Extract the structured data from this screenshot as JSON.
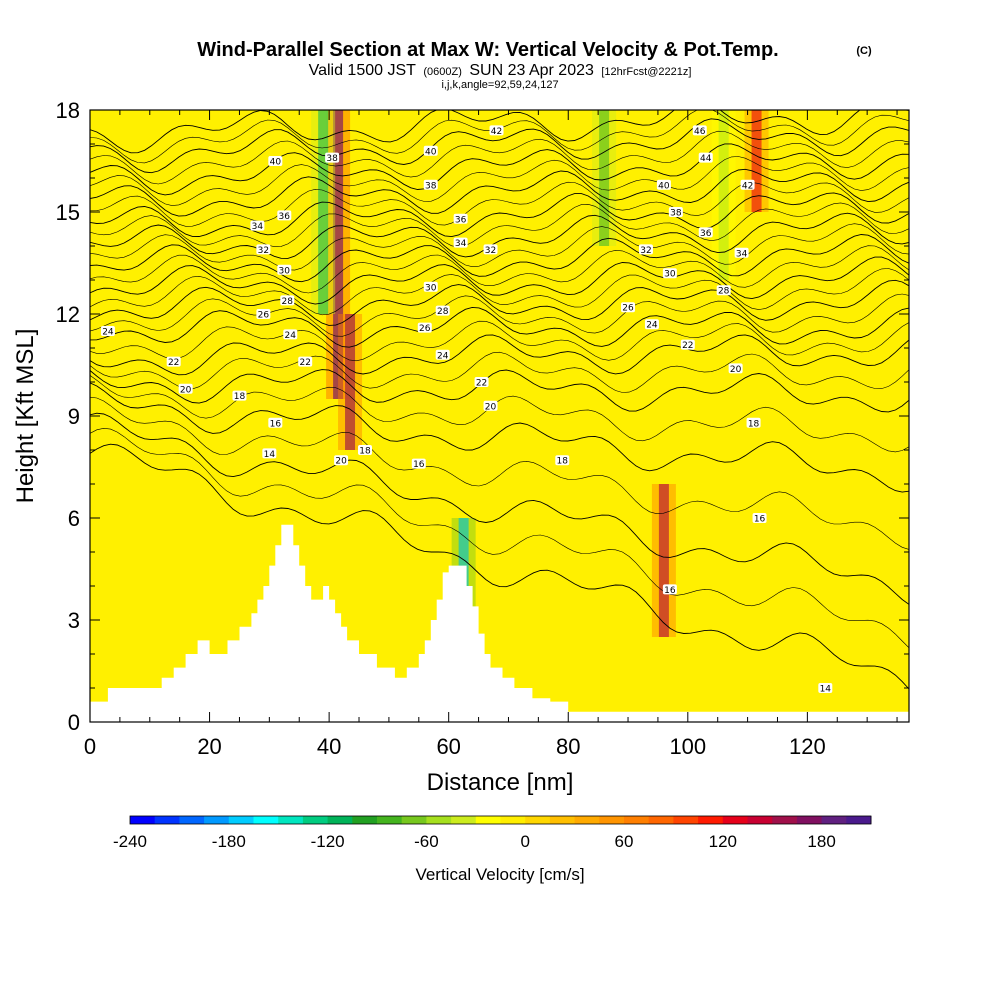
{
  "title": {
    "main": "Wind-Parallel Section at Max W: Vertical Velocity & Pot.Temp.",
    "main_tag": "(C)",
    "valid_a": "Valid 1500 JST",
    "valid_b": "(0600Z)",
    "valid_c": "SUN 23 Apr 2023",
    "valid_d": "[12hrFcst@2221z]",
    "params": "i,j,k,angle=92,59,24,127"
  },
  "chart_data": {
    "type": "heatmap",
    "xlabel": "Distance [nm]",
    "ylabel": "Height [Kft MSL]",
    "xlim": [
      0,
      137
    ],
    "ylim": [
      0,
      18
    ],
    "x_ticks": [
      "0",
      "20",
      "40",
      "60",
      "80",
      "100",
      "120"
    ],
    "x_tick_values": [
      0,
      20,
      40,
      60,
      80,
      100,
      120
    ],
    "y_ticks": [
      "0",
      "3",
      "6",
      "9",
      "12",
      "15",
      "18"
    ],
    "y_tick_values": [
      0,
      3,
      6,
      9,
      12,
      15,
      18
    ],
    "colorbar": {
      "label": "Vertical Velocity [cm/s]",
      "min": -240,
      "max": 210,
      "step": 15,
      "tick_labels": [
        "-240",
        "-180",
        "-120",
        "-60",
        "0",
        "60",
        "120",
        "180"
      ],
      "tick_values": [
        -240,
        -180,
        -120,
        -60,
        0,
        60,
        120,
        180
      ],
      "colors": [
        "#0000ff",
        "#0033ff",
        "#0066ff",
        "#0099ff",
        "#00ccff",
        "#00ffff",
        "#00e6bf",
        "#00cc80",
        "#00b359",
        "#22a022",
        "#44b41e",
        "#77c81e",
        "#a6e01e",
        "#ccec1e",
        "#ffff00",
        "#ffee00",
        "#ffd700",
        "#ffbf00",
        "#ffaa00",
        "#ff9400",
        "#ff7f00",
        "#ff6600",
        "#ff4400",
        "#ff1a00",
        "#e6001a",
        "#c80032",
        "#a0104a",
        "#801060",
        "#602080",
        "#4a1a8c"
      ]
    },
    "velocity_features": [
      {
        "name": "updraft",
        "x": 41.5,
        "y": [
          9.5,
          18
        ],
        "w": 200
      },
      {
        "name": "updraft",
        "x": 43.5,
        "y": [
          8,
          12
        ],
        "w": 170
      },
      {
        "name": "downdraft",
        "x": 62.5,
        "y": [
          2.5,
          6
        ],
        "w": -180
      },
      {
        "name": "downdraft",
        "x": 39,
        "y": [
          12,
          18
        ],
        "w": -110
      },
      {
        "name": "updraft",
        "x": 96,
        "y": [
          2.5,
          7
        ],
        "w": 150
      },
      {
        "name": "updraft",
        "x": 111.5,
        "y": [
          15,
          18
        ],
        "w": 130
      },
      {
        "name": "downdraft",
        "x": 86,
        "y": [
          14,
          18
        ],
        "w": -80
      },
      {
        "name": "downdraft",
        "x": 106,
        "y": [
          13,
          18
        ],
        "w": -60
      }
    ],
    "terrain": [
      [
        0,
        0.6
      ],
      [
        3,
        0.6
      ],
      [
        3,
        1
      ],
      [
        12,
        1
      ],
      [
        12,
        1.3
      ],
      [
        14,
        1.3
      ],
      [
        14,
        1.6
      ],
      [
        16,
        1.6
      ],
      [
        16,
        2
      ],
      [
        18,
        2
      ],
      [
        18,
        2.4
      ],
      [
        20,
        2.4
      ],
      [
        20,
        2
      ],
      [
        23,
        2
      ],
      [
        23,
        2.4
      ],
      [
        25,
        2.4
      ],
      [
        25,
        2.8
      ],
      [
        27,
        2.8
      ],
      [
        27,
        3.2
      ],
      [
        28,
        3.2
      ],
      [
        28,
        3.6
      ],
      [
        29,
        3.6
      ],
      [
        29,
        4
      ],
      [
        30,
        4
      ],
      [
        30,
        4.6
      ],
      [
        31,
        4.6
      ],
      [
        31,
        5.2
      ],
      [
        32,
        5.2
      ],
      [
        32,
        5.8
      ],
      [
        34,
        5.8
      ],
      [
        34,
        5.2
      ],
      [
        35,
        5.2
      ],
      [
        35,
        4.6
      ],
      [
        36,
        4.6
      ],
      [
        36,
        4
      ],
      [
        37,
        4
      ],
      [
        37,
        3.6
      ],
      [
        39,
        3.6
      ],
      [
        39,
        4
      ],
      [
        40,
        4
      ],
      [
        40,
        3.6
      ],
      [
        41,
        3.6
      ],
      [
        41,
        3.2
      ],
      [
        42,
        3.2
      ],
      [
        42,
        2.8
      ],
      [
        43,
        2.8
      ],
      [
        43,
        2.4
      ],
      [
        45,
        2.4
      ],
      [
        45,
        2
      ],
      [
        48,
        2
      ],
      [
        48,
        1.6
      ],
      [
        51,
        1.6
      ],
      [
        51,
        1.3
      ],
      [
        53,
        1.3
      ],
      [
        53,
        1.6
      ],
      [
        55,
        1.6
      ],
      [
        55,
        2
      ],
      [
        56,
        2
      ],
      [
        56,
        2.4
      ],
      [
        57,
        2.4
      ],
      [
        57,
        3
      ],
      [
        58,
        3
      ],
      [
        58,
        3.6
      ],
      [
        59,
        3.6
      ],
      [
        59,
        4.4
      ],
      [
        60,
        4.4
      ],
      [
        60,
        4.6
      ],
      [
        63,
        4.6
      ],
      [
        63,
        4
      ],
      [
        64,
        4
      ],
      [
        64,
        3.4
      ],
      [
        65,
        3.4
      ],
      [
        65,
        2.6
      ],
      [
        66,
        2.6
      ],
      [
        66,
        2
      ],
      [
        67,
        2
      ],
      [
        67,
        1.6
      ],
      [
        69,
        1.6
      ],
      [
        69,
        1.3
      ],
      [
        71,
        1.3
      ],
      [
        71,
        1
      ],
      [
        74,
        1
      ],
      [
        74,
        0.7
      ],
      [
        77,
        0.7
      ],
      [
        77,
        0.6
      ],
      [
        80,
        0.6
      ],
      [
        80,
        0.3
      ],
      [
        137,
        0.3
      ],
      [
        137,
        0
      ]
    ],
    "isentropes": [
      {
        "level": 14,
        "label": "14",
        "y_left": 7.9,
        "y_right": 1.2
      },
      {
        "level": 16,
        "label": "16",
        "y_left": 8.6,
        "y_right": 4.0
      },
      {
        "level": 18,
        "label": "18",
        "y_left": 9.4,
        "y_right": 7.3
      },
      {
        "level": 20,
        "label": "20",
        "y_left": 10.0,
        "y_right": 9.6
      },
      {
        "level": 22,
        "label": "22",
        "y_left": 10.7,
        "y_right": 10.9
      },
      {
        "level": 24,
        "label": "24",
        "y_left": 11.6,
        "y_right": 11.6
      },
      {
        "level": 26,
        "label": "26",
        "y_left": 12.2,
        "y_right": 12.4
      },
      {
        "level": 28,
        "label": "28",
        "y_left": 12.8,
        "y_right": 13.1
      },
      {
        "level": 30,
        "label": "30",
        "y_left": 13.4,
        "y_right": 13.8
      },
      {
        "level": 32,
        "label": "32",
        "y_left": 14.0,
        "y_right": 14.5
      },
      {
        "level": 34,
        "label": "34",
        "y_left": 14.6,
        "y_right": 15.2
      },
      {
        "level": 36,
        "label": "36",
        "y_left": 15.3,
        "y_right": 15.9
      },
      {
        "level": 38,
        "label": "38",
        "y_left": 16.0,
        "y_right": 16.6
      },
      {
        "level": 40,
        "label": "40",
        "y_left": 16.7,
        "y_right": 17.3
      },
      {
        "level": 42,
        "label": "42",
        "y_left": 17.3,
        "y_right": 17.9
      }
    ],
    "contour_labels": [
      {
        "text": "24",
        "x": 3,
        "y": 11.5
      },
      {
        "text": "22",
        "x": 14,
        "y": 10.6
      },
      {
        "text": "20",
        "x": 16,
        "y": 9.8
      },
      {
        "text": "18",
        "x": 25,
        "y": 9.6
      },
      {
        "text": "16",
        "x": 31,
        "y": 8.8
      },
      {
        "text": "14",
        "x": 30,
        "y": 7.9
      },
      {
        "text": "40",
        "x": 31,
        "y": 16.5
      },
      {
        "text": "36",
        "x": 32.5,
        "y": 14.9
      },
      {
        "text": "34",
        "x": 28,
        "y": 14.6
      },
      {
        "text": "32",
        "x": 29,
        "y": 13.9
      },
      {
        "text": "30",
        "x": 32.5,
        "y": 13.3
      },
      {
        "text": "28",
        "x": 33,
        "y": 12.4
      },
      {
        "text": "26",
        "x": 29,
        "y": 12.0
      },
      {
        "text": "24",
        "x": 33.5,
        "y": 11.4
      },
      {
        "text": "22",
        "x": 36,
        "y": 10.6
      },
      {
        "text": "38",
        "x": 40.5,
        "y": 16.6
      },
      {
        "text": "20",
        "x": 42,
        "y": 7.7
      },
      {
        "text": "18",
        "x": 46,
        "y": 8.0
      },
      {
        "text": "16",
        "x": 55,
        "y": 7.6
      },
      {
        "text": "40",
        "x": 57,
        "y": 16.8
      },
      {
        "text": "38",
        "x": 57,
        "y": 15.8
      },
      {
        "text": "36",
        "x": 62,
        "y": 14.8
      },
      {
        "text": "34",
        "x": 62,
        "y": 14.1
      },
      {
        "text": "32",
        "x": 67,
        "y": 13.9
      },
      {
        "text": "30",
        "x": 57,
        "y": 12.8
      },
      {
        "text": "28",
        "x": 59,
        "y": 12.1
      },
      {
        "text": "26",
        "x": 56,
        "y": 11.6
      },
      {
        "text": "24",
        "x": 59,
        "y": 10.8
      },
      {
        "text": "22",
        "x": 65.5,
        "y": 10.0
      },
      {
        "text": "20",
        "x": 67,
        "y": 9.3
      },
      {
        "text": "42",
        "x": 68,
        "y": 17.4
      },
      {
        "text": "18",
        "x": 79,
        "y": 7.7
      },
      {
        "text": "16",
        "x": 97,
        "y": 3.9
      },
      {
        "text": "26",
        "x": 90,
        "y": 12.2
      },
      {
        "text": "24",
        "x": 94,
        "y": 11.7
      },
      {
        "text": "22",
        "x": 100,
        "y": 11.1
      },
      {
        "text": "32",
        "x": 93,
        "y": 13.9
      },
      {
        "text": "30",
        "x": 97,
        "y": 13.2
      },
      {
        "text": "28",
        "x": 106,
        "y": 12.7
      },
      {
        "text": "34",
        "x": 109,
        "y": 13.8
      },
      {
        "text": "36",
        "x": 103,
        "y": 14.4
      },
      {
        "text": "38",
        "x": 98,
        "y": 15.0
      },
      {
        "text": "40",
        "x": 96,
        "y": 15.8
      },
      {
        "text": "42",
        "x": 110,
        "y": 15.8
      },
      {
        "text": "44",
        "x": 103,
        "y": 16.6
      },
      {
        "text": "46",
        "x": 102,
        "y": 17.4
      },
      {
        "text": "20",
        "x": 108,
        "y": 10.4
      },
      {
        "text": "18",
        "x": 111,
        "y": 8.8
      },
      {
        "text": "16",
        "x": 112,
        "y": 6.0
      },
      {
        "text": "14",
        "x": 123,
        "y": 1.0
      }
    ]
  }
}
